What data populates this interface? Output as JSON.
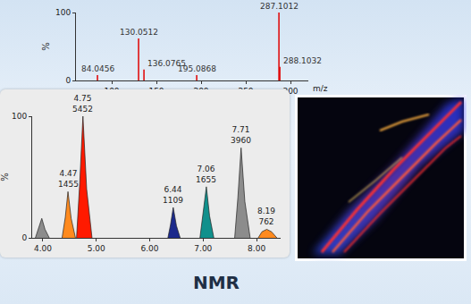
{
  "chart_data": [
    {
      "type": "stem",
      "x": [
        84.0456,
        130.0512,
        136.0765,
        195.0868,
        287.1012,
        288.1032
      ],
      "values": [
        8,
        62,
        16,
        8,
        100,
        20
      ],
      "color": "#e00000",
      "xlim": [
        60,
        320
      ],
      "xticks": [
        100,
        150,
        200,
        250,
        300
      ],
      "ylim": [
        0,
        100
      ],
      "yticks": [
        0,
        100
      ],
      "xlabel": "m/z",
      "ylabel": "%",
      "annotations": [
        {
          "x": 84.0456,
          "text": "84.0456"
        },
        {
          "x": 130.0512,
          "text": "130.0512"
        },
        {
          "x": 136.0765,
          "text": "136.0765"
        },
        {
          "x": 195.0868,
          "text": "195.0868"
        },
        {
          "x": 287.1012,
          "text": "287.1012"
        },
        {
          "x": 288.1032,
          "text": "288.1032"
        }
      ]
    },
    {
      "type": "area",
      "xlim": [
        3.8,
        8.45
      ],
      "xticks": [
        {
          "value": 4,
          "label": "4.00"
        },
        {
          "value": 5,
          "label": "5.00"
        },
        {
          "value": 6,
          "label": "6.00"
        },
        {
          "value": 7,
          "label": "7.00"
        },
        {
          "value": 8,
          "label": "8.00"
        }
      ],
      "ylim": [
        0,
        100
      ],
      "yticks": [
        0,
        100
      ],
      "ylabel": "%",
      "series": [
        {
          "color": "#8c8c8c",
          "x": [
            3.86,
            3.92,
            3.98,
            4.04,
            4.12
          ],
          "values": [
            0,
            8,
            16,
            7,
            0
          ]
        },
        {
          "color": "#ff8a1e",
          "x": [
            4.36,
            4.42,
            4.47,
            4.53,
            4.61
          ],
          "values": [
            0,
            17,
            38,
            16,
            0
          ],
          "time": 4.47,
          "area": 1455
        },
        {
          "color": "#ff1a00",
          "x": [
            4.63,
            4.69,
            4.75,
            4.82,
            4.92
          ],
          "values": [
            0,
            45,
            100,
            40,
            0
          ],
          "time": 4.75,
          "area": 5452
        },
        {
          "color": "#1c2a8c",
          "x": [
            6.34,
            6.39,
            6.44,
            6.5,
            6.57
          ],
          "values": [
            0,
            11,
            25,
            10,
            0
          ],
          "time": 6.44,
          "area": 1109
        },
        {
          "color": "#10908c",
          "x": [
            6.94,
            7.0,
            7.06,
            7.12,
            7.2
          ],
          "values": [
            0,
            19,
            42,
            18,
            0
          ],
          "time": 7.06,
          "area": 1655
        },
        {
          "color": "#8c8c8c",
          "x": [
            7.59,
            7.65,
            7.71,
            7.78,
            7.88
          ],
          "values": [
            0,
            33,
            74,
            30,
            0
          ],
          "time": 7.71,
          "area": 3960
        },
        {
          "color": "#ff8a1e",
          "x": [
            8.03,
            8.1,
            8.19,
            8.28,
            8.38
          ],
          "values": [
            0,
            5,
            7,
            5,
            0
          ],
          "time": 8.19,
          "area": 762
        }
      ]
    }
  ],
  "caption": "NMR"
}
